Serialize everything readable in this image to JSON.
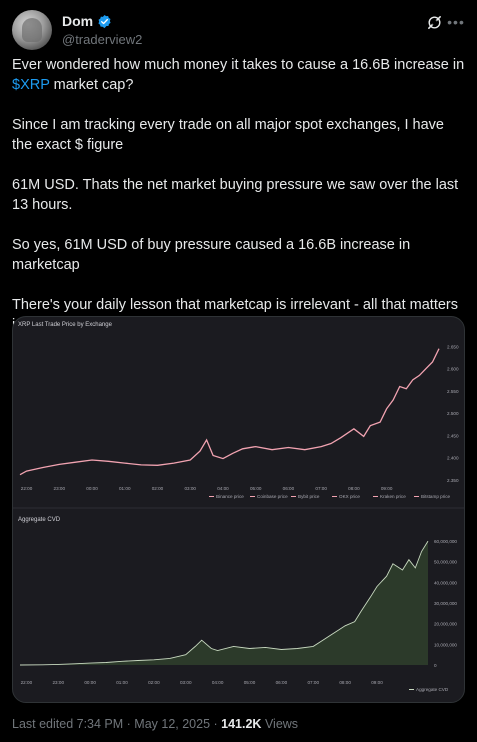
{
  "author": {
    "name": "Dom",
    "handle": "@traderview2"
  },
  "tweet": {
    "line1_pre": "Ever wondered how much money it takes to cause a 16.6B increase in ",
    "cashtag": "$XRP",
    "line1_post": " market cap?",
    "para2": "Since I am tracking every trade on all major spot exchanges, I have the exact $ figure",
    "para3": "61M USD. Thats the net market buying pressure we saw over the last 13 hours.",
    "para4": "So yes, 61M USD of buy pressure caused a 16.6B increase in marketcap",
    "para5": "There's your daily lesson that marketcap is irrelevant - all that matters is liquidity"
  },
  "meta": {
    "edited": "Last edited 7:34 PM · May 12, 2025 · ",
    "views_count": "141.2K",
    "views_label": " Views"
  },
  "colors": {
    "accent": "#1d9bf0",
    "price_line": "#f2a3b1",
    "cvd_fill": "#2c3a2a",
    "cvd_line": "#c8d9c0",
    "panel_bg": "#1b1b20"
  },
  "chart_data": [
    {
      "type": "line",
      "title": "XRP Last Trade Price by Exchange",
      "categories": [
        "22:00",
        "23:00",
        "00:00",
        "01:00",
        "02:00",
        "03:00",
        "04:00",
        "05:00",
        "06:00",
        "07:00",
        "08:00",
        "09:00"
      ],
      "yticks": [
        "2.350",
        "2.400",
        "2.450",
        "2.500",
        "2.550",
        "2.600",
        "2.650"
      ],
      "ylim": [
        2.35,
        2.66
      ],
      "x": [
        21.8,
        22.0,
        22.5,
        23.0,
        23.5,
        24.0,
        24.5,
        25.0,
        25.5,
        26.0,
        26.5,
        27.0,
        27.3,
        27.5,
        27.7,
        28.0,
        28.3,
        28.6,
        29.0,
        29.5,
        30.0,
        30.5,
        31.0,
        31.3,
        31.6,
        32.0,
        32.3,
        32.5,
        32.8,
        33.0,
        33.2,
        33.4,
        33.6,
        33.8,
        34.0,
        34.2,
        34.4,
        34.6
      ],
      "series": [
        {
          "name": "Binance price",
          "values": [
            2.362,
            2.37,
            2.378,
            2.385,
            2.39,
            2.395,
            2.392,
            2.388,
            2.384,
            2.383,
            2.388,
            2.395,
            2.415,
            2.44,
            2.405,
            2.398,
            2.41,
            2.42,
            2.425,
            2.418,
            2.423,
            2.418,
            2.425,
            2.432,
            2.445,
            2.465,
            2.448,
            2.472,
            2.48,
            2.51,
            2.53,
            2.56,
            2.555,
            2.575,
            2.585,
            2.6,
            2.615,
            2.645
          ]
        }
      ],
      "legend": [
        "Binance price",
        "Coinbase price",
        "Bybit price",
        "OKX price",
        "Kraken price",
        "Bitstamp price"
      ]
    },
    {
      "type": "area",
      "title": "Aggregate CVD",
      "categories": [
        "22:00",
        "23:00",
        "00:00",
        "01:00",
        "02:00",
        "03:00",
        "04:00",
        "05:00",
        "06:00",
        "07:00",
        "08:00",
        "09:00"
      ],
      "yticks": [
        "0",
        "10,000,000",
        "20,000,000",
        "30,000,000",
        "40,000,000",
        "50,000,000",
        "60,000,000"
      ],
      "ylim": [
        0,
        61000000
      ],
      "x": [
        21.8,
        22.5,
        23.0,
        23.5,
        24.0,
        24.5,
        25.0,
        25.5,
        26.0,
        26.5,
        27.0,
        27.3,
        27.5,
        27.8,
        28.0,
        28.5,
        29.0,
        29.5,
        30.0,
        30.5,
        31.0,
        31.3,
        31.6,
        31.8,
        32.0,
        32.3,
        32.5,
        32.8,
        33.0,
        33.3,
        33.5,
        33.8,
        34.0,
        34.2,
        34.4,
        34.6
      ],
      "series": [
        {
          "name": "Aggregate CVD",
          "values": [
            0,
            100000,
            300000,
            600000,
            900000,
            1200000,
            1800000,
            2200000,
            2500000,
            3200000,
            5000000,
            9000000,
            12000000,
            8000000,
            7000000,
            9000000,
            8000000,
            8500000,
            7500000,
            8000000,
            9000000,
            12000000,
            15000000,
            17000000,
            19000000,
            21000000,
            26000000,
            33000000,
            38000000,
            43000000,
            49000000,
            46000000,
            51000000,
            47000000,
            55000000,
            60000000
          ]
        }
      ],
      "legend": [
        "Aggregate CVD"
      ]
    }
  ]
}
